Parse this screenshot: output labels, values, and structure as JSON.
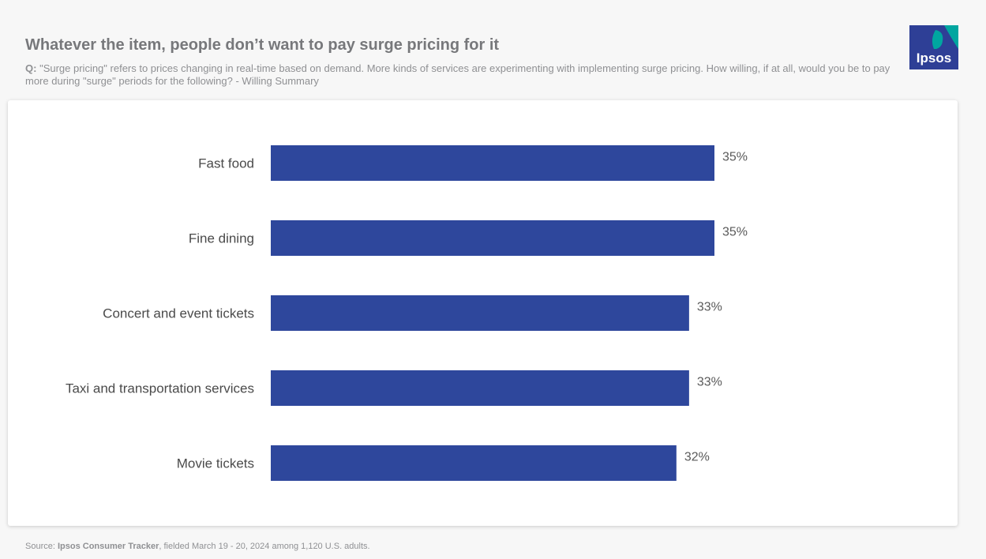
{
  "header": {
    "title": "Whatever the item, people don’t want to pay surge pricing for it",
    "question_prefix": "Q:",
    "question_text": "\"Surge pricing\" refers to prices changing in real-time based on demand. More kinds of services are experimenting with implementing surge pricing. How willing, if at all, would you be to pay more during \"surge\" periods for the following? - Willing Summary"
  },
  "logo": {
    "text": "Ipsos",
    "colors": {
      "blue": "#2e3f96",
      "teal": "#00a6a0"
    }
  },
  "chart_data": {
    "type": "bar",
    "orientation": "horizontal",
    "categories": [
      "Fast food",
      "Fine dining",
      "Concert and event tickets",
      "Taxi and transportation services",
      "Movie tickets"
    ],
    "values": [
      35,
      35,
      33,
      33,
      32
    ],
    "value_labels": [
      "35%",
      "35%",
      "33%",
      "33%",
      "32%"
    ],
    "unit": "%",
    "bar_color": "#2e479c",
    "grid": false,
    "legend": "none"
  },
  "footer": {
    "source_prefix": "Source:",
    "source_name": "Ipsos Consumer Tracker",
    "source_rest": ", fielded March 19 - 20, 2024 among 1,120 U.S. adults."
  }
}
